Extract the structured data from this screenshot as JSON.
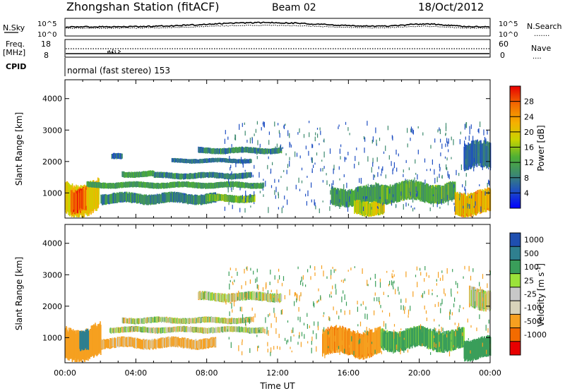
{
  "header": {
    "station": "Zhongshan Station (fitACF)",
    "beam": "Beam 02",
    "date": "18/Oct/2012",
    "cpid_label": "CPID",
    "cpid_value": "normal (fast stereo) 153"
  },
  "panels": {
    "nsky": {
      "label": "N.Sky",
      "ticks_left": [
        "10^5",
        "10^0"
      ],
      "ticks_right": [
        "10^5",
        "10^0"
      ],
      "right_label": "N.Search",
      "right_legend": "......."
    },
    "freq": {
      "label": "Freq.",
      "unit": "[MHz]",
      "ticks_left": [
        "18",
        "8"
      ],
      "ticks_right": [
        "60",
        "0"
      ],
      "right_label": "Nave",
      "right_legend": "...."
    }
  },
  "colors": {
    "power_scale": [
      "#0000ff",
      "#1e4ec2",
      "#3d8a6e",
      "#4fb034",
      "#c8d400",
      "#f6b000",
      "#f26b00",
      "#e80000"
    ],
    "velocity_scale": [
      "#e80000",
      "#f26b00",
      "#f6a020",
      "#d8d3ba",
      "#c8c8c8",
      "#9be23a",
      "#3a9e5a",
      "#2f7f8f",
      "#1f4fb0"
    ]
  },
  "chart_data": [
    {
      "type": "heatmap",
      "name": "power",
      "xlabel": "",
      "ylabel": "Slant Range [km]",
      "xlim": [
        "00:00",
        "24:00"
      ],
      "ylim": [
        200,
        4600
      ],
      "yticks": [
        1000,
        2000,
        3000,
        4000
      ],
      "xticks": [
        "00:00",
        "04:00",
        "08:00",
        "12:00",
        "16:00",
        "20:00",
        "00:00"
      ],
      "colorbar": {
        "label": "Power [dB]",
        "ticks": [
          4,
          8,
          12,
          16,
          20,
          24,
          28
        ],
        "range": [
          0,
          32
        ]
      },
      "echo_regions": [
        {
          "t0": 0.0,
          "t1": 1.9,
          "r0": 300,
          "r1": 1400,
          "value": 20
        },
        {
          "t0": 0.3,
          "t1": 1.2,
          "r0": 400,
          "r1": 1200,
          "value": 26
        },
        {
          "t0": 1.2,
          "t1": 11.2,
          "r0": 1150,
          "r1": 1350,
          "value": 12
        },
        {
          "t0": 2.0,
          "t1": 8.5,
          "r0": 650,
          "r1": 1000,
          "value": 10
        },
        {
          "t0": 8.0,
          "t1": 10.7,
          "r0": 700,
          "r1": 950,
          "value": 14
        },
        {
          "t0": 2.6,
          "t1": 3.2,
          "r0": 2050,
          "r1": 2250,
          "value": 8
        },
        {
          "t0": 3.2,
          "t1": 5.0,
          "r0": 1500,
          "r1": 1700,
          "value": 12
        },
        {
          "t0": 5.0,
          "t1": 10.5,
          "r0": 1450,
          "r1": 1650,
          "value": 10
        },
        {
          "t0": 6.0,
          "t1": 10.5,
          "r0": 1950,
          "r1": 2100,
          "value": 8
        },
        {
          "t0": 7.5,
          "t1": 12.2,
          "r0": 2250,
          "r1": 2450,
          "value": 10
        },
        {
          "t0": 15.0,
          "t1": 17.5,
          "r0": 600,
          "r1": 1200,
          "value": 12
        },
        {
          "t0": 16.3,
          "t1": 18.0,
          "r0": 300,
          "r1": 800,
          "value": 18
        },
        {
          "t0": 17.5,
          "t1": 22.0,
          "r0": 700,
          "r1": 1350,
          "value": 13
        },
        {
          "t0": 22.0,
          "t1": 24.0,
          "r0": 300,
          "r1": 1100,
          "value": 22
        },
        {
          "t0": 22.5,
          "t1": 24.0,
          "r0": 1700,
          "r1": 2600,
          "value": 8
        }
      ]
    },
    {
      "type": "heatmap",
      "name": "velocity",
      "xlabel": "Time UT",
      "ylabel": "Slant Range [km]",
      "xlim": [
        "00:00",
        "24:00"
      ],
      "ylim": [
        200,
        4600
      ],
      "yticks": [
        1000,
        2000,
        3000,
        4000
      ],
      "xticks": [
        "00:00",
        "04:00",
        "08:00",
        "12:00",
        "16:00",
        "20:00",
        "00:00"
      ],
      "colorbar": {
        "label": "Velocity [m s^-1]",
        "ticks": [
          "1000",
          "500",
          "100",
          "25",
          "-25",
          "-100",
          "-500",
          "-1000"
        ]
      },
      "echo_regions": [
        {
          "t0": 0.0,
          "t1": 2.0,
          "r0": 300,
          "r1": 1400,
          "value": -300
        },
        {
          "t0": 0.8,
          "t1": 1.3,
          "r0": 500,
          "r1": 1200,
          "value": 700
        },
        {
          "t0": 2.0,
          "t1": 8.5,
          "r0": 650,
          "r1": 1000,
          "value": -150
        },
        {
          "t0": 2.5,
          "t1": 11.2,
          "r0": 1150,
          "r1": 1350,
          "value": 0
        },
        {
          "t0": 3.2,
          "t1": 10.5,
          "r0": 1450,
          "r1": 1650,
          "value": 0
        },
        {
          "t0": 7.5,
          "t1": 12.2,
          "r0": 2150,
          "r1": 2450,
          "value": 0
        },
        {
          "t0": 14.5,
          "t1": 17.8,
          "r0": 400,
          "r1": 1300,
          "value": -400
        },
        {
          "t0": 17.8,
          "t1": 22.5,
          "r0": 600,
          "r1": 1300,
          "value": 200
        },
        {
          "t0": 22.5,
          "t1": 24.0,
          "r0": 300,
          "r1": 1000,
          "value": 300
        },
        {
          "t0": 22.8,
          "t1": 24.0,
          "r0": 1900,
          "r1": 2600,
          "value": 0
        }
      ]
    }
  ]
}
